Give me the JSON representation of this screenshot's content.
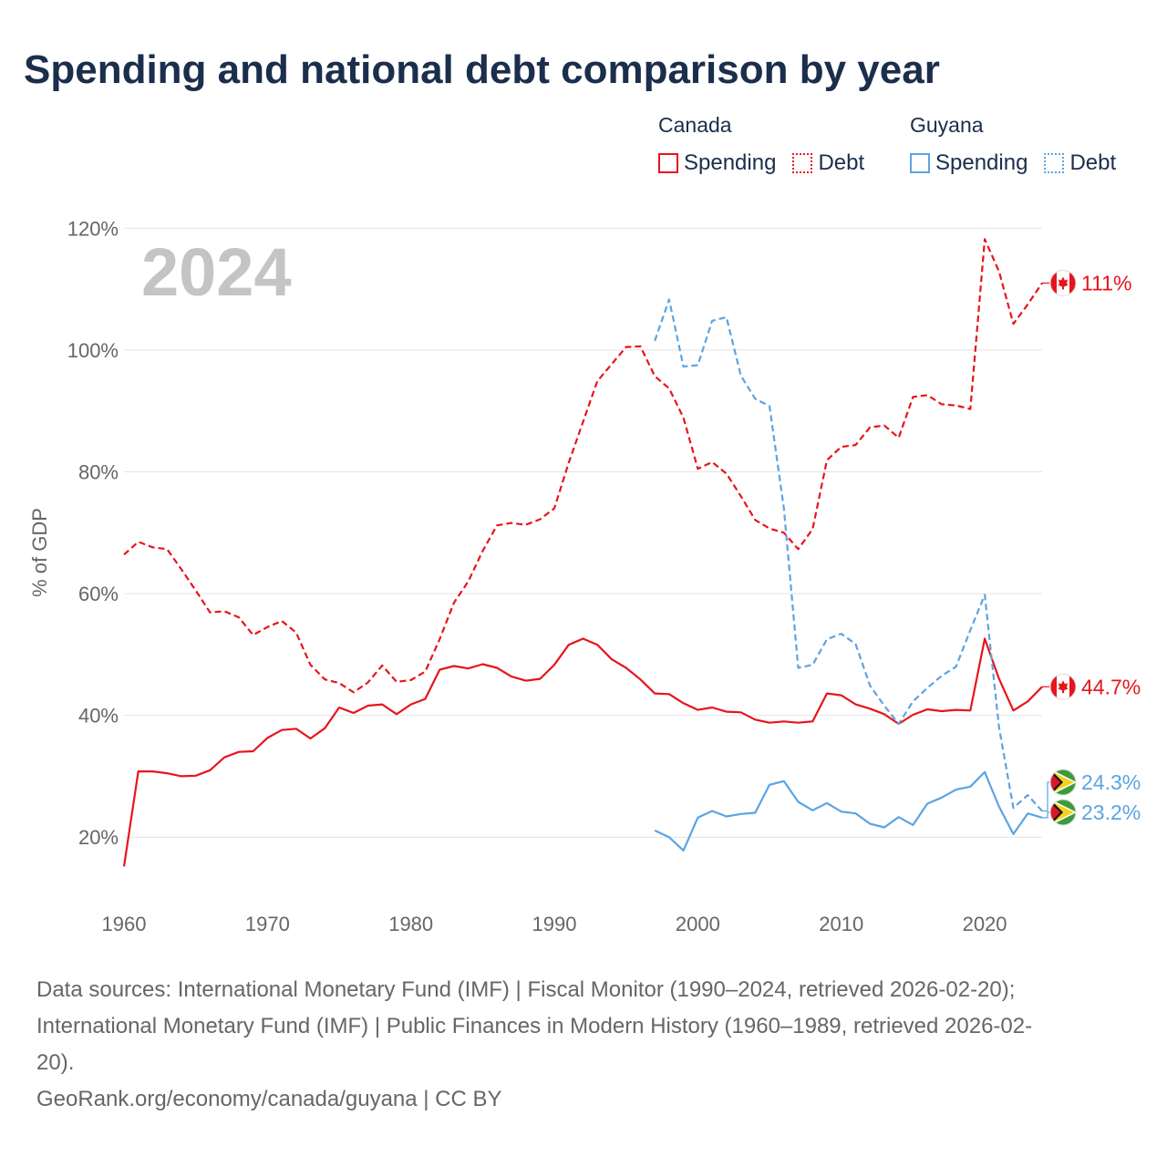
{
  "title": "Spending and national debt comparison by year",
  "legend": {
    "groups": [
      {
        "name": "Canada",
        "items": [
          {
            "label": "Spending",
            "style": "solid",
            "color": "#e8141c"
          },
          {
            "label": "Debt",
            "style": "dotted",
            "color": "#e8141c"
          }
        ]
      },
      {
        "name": "Guyana",
        "items": [
          {
            "label": "Spending",
            "style": "solid",
            "color": "#5ba4e3"
          },
          {
            "label": "Debt",
            "style": "dotted",
            "color": "#5ba4e3"
          }
        ]
      }
    ]
  },
  "chart_data": {
    "type": "line",
    "title": "Spending and national debt comparison by year",
    "year_watermark": "2024",
    "ylabel": "% of GDP",
    "xlabel": "",
    "xlim": [
      1960,
      2024
    ],
    "ylim": [
      10,
      122
    ],
    "yticks": [
      20,
      40,
      60,
      80,
      100,
      120
    ],
    "ytick_labels": [
      "20%",
      "40%",
      "60%",
      "80%",
      "100%",
      "120%"
    ],
    "xticks": [
      1960,
      1970,
      1980,
      1990,
      2000,
      2010,
      2020
    ],
    "xtick_labels": [
      "1960",
      "1970",
      "1980",
      "1990",
      "2000",
      "2010",
      "2020"
    ],
    "grid": true,
    "series": [
      {
        "name": "Canada Debt",
        "country": "Canada",
        "kind": "debt",
        "color": "#e8141c",
        "dashed": true,
        "start_year": 1960,
        "values": [
          66.4,
          68.5,
          67.6,
          67.3,
          64.0,
          60.5,
          56.9,
          57.1,
          56.1,
          53.2,
          54.5,
          55.5,
          53.6,
          48.3,
          45.9,
          45.3,
          43.8,
          45.4,
          48.2,
          45.5,
          45.8,
          47.2,
          52.5,
          58.5,
          62.0,
          67.0,
          71.2,
          71.6,
          71.3,
          72.2,
          74.0,
          81.5,
          88.2,
          94.9,
          97.7,
          100.5,
          100.6,
          95.7,
          93.7,
          88.9,
          80.5,
          81.6,
          79.7,
          76.0,
          72.1,
          70.7,
          70.0,
          67.3,
          70.6,
          81.9,
          84.1,
          84.4,
          87.3,
          87.6,
          85.6,
          92.3,
          92.6,
          91.1,
          90.9,
          90.3,
          118.2,
          112.9,
          104.3,
          107.5,
          111.0
        ],
        "end_label": "111%",
        "flag": "canada"
      },
      {
        "name": "Canada Spending",
        "country": "Canada",
        "kind": "spending",
        "color": "#e8141c",
        "dashed": false,
        "start_year": 1960,
        "values": [
          15.2,
          30.8,
          30.8,
          30.5,
          30.0,
          30.1,
          31.0,
          33.1,
          34.0,
          34.1,
          36.3,
          37.6,
          37.8,
          36.2,
          37.9,
          41.3,
          40.4,
          41.6,
          41.8,
          40.2,
          41.8,
          42.7,
          47.5,
          48.1,
          47.7,
          48.4,
          47.8,
          46.4,
          45.7,
          46.0,
          48.3,
          51.6,
          52.6,
          51.6,
          49.2,
          47.8,
          45.9,
          43.6,
          43.5,
          42.0,
          40.9,
          41.3,
          40.6,
          40.5,
          39.3,
          38.8,
          39.0,
          38.8,
          39.0,
          43.6,
          43.3,
          41.8,
          41.1,
          40.2,
          38.6,
          40.1,
          41.0,
          40.7,
          40.9,
          40.8,
          52.6,
          46.0,
          40.8,
          42.3,
          44.7
        ],
        "end_label": "44.7%",
        "flag": "canada"
      },
      {
        "name": "Guyana Debt",
        "country": "Guyana",
        "kind": "debt",
        "color": "#5ba4e3",
        "dashed": true,
        "start_year": 1997,
        "values": [
          101.5,
          108.3,
          97.3,
          97.5,
          104.8,
          105.4,
          95.8,
          92.0,
          90.8,
          74.0,
          47.8,
          48.3,
          52.5,
          53.4,
          51.7,
          44.9,
          41.6,
          38.6,
          42.3,
          44.5,
          46.5,
          48.0,
          54.0,
          59.8,
          38.0,
          24.8,
          26.9,
          24.3
        ],
        "end_label": "24.3%",
        "flag": "guyana"
      },
      {
        "name": "Guyana Spending",
        "country": "Guyana",
        "kind": "spending",
        "color": "#5ba4e3",
        "dashed": false,
        "start_year": 1997,
        "values": [
          21.1,
          20.0,
          17.8,
          23.2,
          24.3,
          23.4,
          23.8,
          24.0,
          28.6,
          29.2,
          25.8,
          24.4,
          25.6,
          24.2,
          23.9,
          22.2,
          21.6,
          23.3,
          22.0,
          25.5,
          26.5,
          27.8,
          28.3,
          30.7,
          25.0,
          20.5,
          23.9,
          23.2
        ],
        "end_label": "23.2%",
        "flag": "guyana"
      }
    ]
  },
  "sources": {
    "line1": "Data sources: International Monetary Fund (IMF) | Fiscal Monitor (1990–2024, retrieved 2026-02-20);",
    "line2": "International Monetary Fund (IMF) | Public Finances in Modern History (1960–1989, retrieved 2026-02-",
    "line3": "20).",
    "attribution": "GeoRank.org/economy/canada/guyana | CC BY"
  }
}
